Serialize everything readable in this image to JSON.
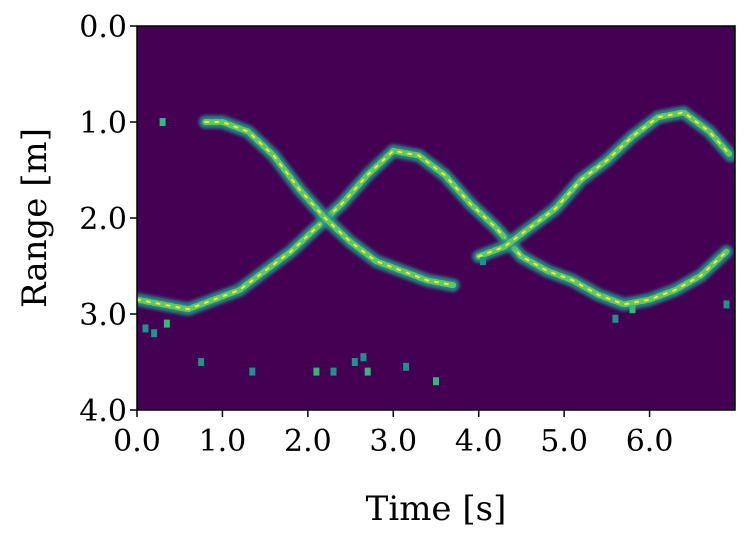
{
  "chart_data": {
    "type": "heatmap",
    "title": "",
    "xlabel": "Time [s]",
    "ylabel": "Range [m]",
    "xlim": [
      0.0,
      7.0
    ],
    "ylim": [
      0.0,
      4.0
    ],
    "y_inverted": true,
    "x_ticks": [
      0.0,
      1.0,
      2.0,
      3.0,
      4.0,
      5.0,
      6.0
    ],
    "x_tick_labels": [
      "0.0",
      "1.0",
      "2.0",
      "3.0",
      "4.0",
      "5.0",
      "6.0"
    ],
    "y_ticks": [
      0.0,
      1.0,
      2.0,
      3.0,
      4.0
    ],
    "y_tick_labels": [
      "0.0",
      "1.0",
      "2.0",
      "3.0",
      "4.0"
    ],
    "grid": false,
    "colormap": "viridis",
    "background_color": "#440154",
    "tracks": [
      {
        "name": "",
        "points": [
          [
            0.0,
            2.85
          ],
          [
            0.3,
            2.9
          ],
          [
            0.6,
            2.95
          ],
          [
            0.9,
            2.85
          ],
          [
            1.2,
            2.75
          ],
          [
            1.5,
            2.55
          ],
          [
            1.8,
            2.35
          ],
          [
            2.1,
            2.1
          ],
          [
            2.4,
            1.85
          ],
          [
            2.7,
            1.55
          ],
          [
            3.0,
            1.3
          ],
          [
            3.3,
            1.35
          ],
          [
            3.6,
            1.55
          ],
          [
            3.9,
            1.85
          ],
          [
            4.2,
            2.1
          ],
          [
            4.5,
            2.4
          ],
          [
            4.8,
            2.55
          ],
          [
            5.1,
            2.65
          ],
          [
            5.4,
            2.8
          ],
          [
            5.7,
            2.9
          ],
          [
            6.0,
            2.85
          ],
          [
            6.3,
            2.75
          ],
          [
            6.6,
            2.6
          ],
          [
            6.9,
            2.35
          ]
        ]
      },
      {
        "name": "",
        "points": [
          [
            0.8,
            1.0
          ],
          [
            1.0,
            1.0
          ],
          [
            1.3,
            1.1
          ],
          [
            1.6,
            1.35
          ],
          [
            1.9,
            1.7
          ],
          [
            2.2,
            2.0
          ],
          [
            2.5,
            2.25
          ],
          [
            2.8,
            2.45
          ],
          [
            3.1,
            2.55
          ],
          [
            3.4,
            2.65
          ],
          [
            3.7,
            2.7
          ]
        ]
      },
      {
        "name": "",
        "points": [
          [
            4.0,
            2.4
          ],
          [
            4.3,
            2.3
          ],
          [
            4.6,
            2.1
          ],
          [
            4.9,
            1.9
          ],
          [
            5.2,
            1.6
          ],
          [
            5.5,
            1.4
          ],
          [
            5.8,
            1.15
          ],
          [
            6.1,
            0.95
          ],
          [
            6.4,
            0.9
          ],
          [
            6.7,
            1.1
          ],
          [
            6.95,
            1.35
          ]
        ]
      }
    ],
    "speckles": [
      [
        0.3,
        1.0
      ],
      [
        0.1,
        3.15
      ],
      [
        0.2,
        3.2
      ],
      [
        0.35,
        3.1
      ],
      [
        0.75,
        3.5
      ],
      [
        1.35,
        3.6
      ],
      [
        2.1,
        3.6
      ],
      [
        2.3,
        3.6
      ],
      [
        2.55,
        3.5
      ],
      [
        2.7,
        3.6
      ],
      [
        2.65,
        3.45
      ],
      [
        3.15,
        3.55
      ],
      [
        3.5,
        3.7
      ],
      [
        4.05,
        2.45
      ],
      [
        5.6,
        3.05
      ],
      [
        5.8,
        2.95
      ],
      [
        6.9,
        2.9
      ]
    ]
  }
}
